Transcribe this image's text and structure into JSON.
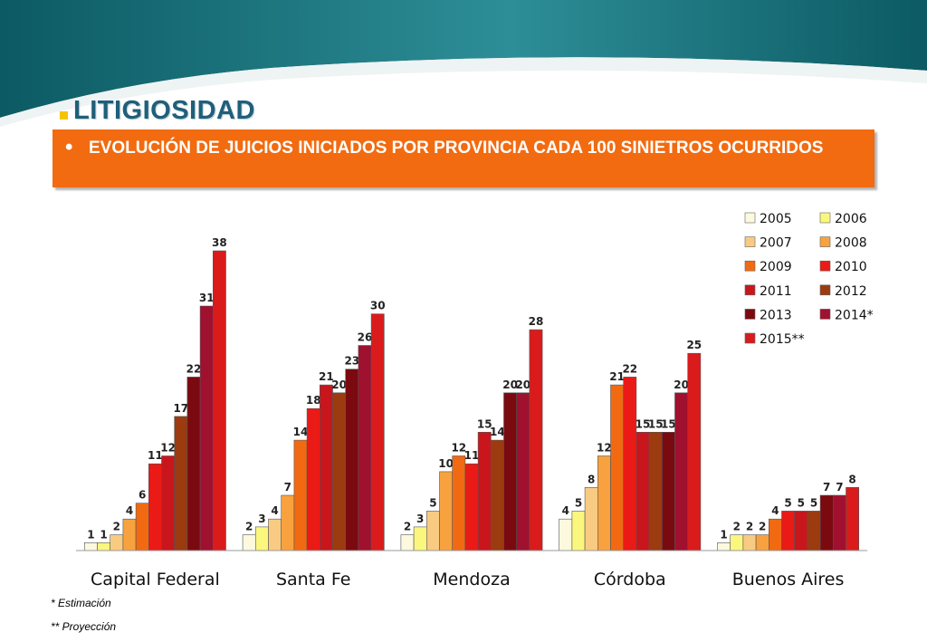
{
  "page": {
    "title": "LITIGIOSIDAD",
    "subtitle": "EVOLUCIÓN DE JUICIOS INICIADOS POR PROVINCIA CADA 100 SINIETROS OCURRIDOS",
    "subtitle_bullet": "•",
    "footnotes": [
      "* Estimación",
      "** Proyección"
    ]
  },
  "colors": {
    "header_dark": "#0c5a63",
    "header_light": "#2d8e97",
    "title": "#1f5f7a",
    "bullet": "#f5c400",
    "subtitle_bg": "#f26b10"
  },
  "chart_data": {
    "type": "bar",
    "title": "",
    "xlabel": "",
    "ylabel": "",
    "ylim": [
      0,
      38
    ],
    "grid": false,
    "legend_position": "top-right",
    "categories": [
      "Capital Federal",
      "Santa Fe",
      "Mendoza",
      "Córdoba",
      "Buenos Aires"
    ],
    "series": [
      {
        "name": "2005",
        "color": "#fdf9de",
        "values": [
          1,
          2,
          2,
          4,
          1
        ]
      },
      {
        "name": "2006",
        "color": "#fbf77e",
        "values": [
          1,
          3,
          3,
          5,
          2
        ]
      },
      {
        "name": "2007",
        "color": "#f9cb82",
        "values": [
          2,
          4,
          5,
          8,
          2
        ]
      },
      {
        "name": "2008",
        "color": "#f7a23f",
        "values": [
          4,
          7,
          10,
          12,
          2
        ]
      },
      {
        "name": "2009",
        "color": "#f16a12",
        "values": [
          6,
          14,
          12,
          21,
          4
        ]
      },
      {
        "name": "2010",
        "color": "#ea1a17",
        "values": [
          11,
          18,
          11,
          22,
          5
        ]
      },
      {
        "name": "2011",
        "color": "#c8161c",
        "values": [
          12,
          21,
          15,
          15,
          5
        ]
      },
      {
        "name": "2012",
        "color": "#9b3b0f",
        "values": [
          17,
          20,
          14,
          15,
          5
        ]
      },
      {
        "name": "2013",
        "color": "#7b0a10",
        "values": [
          22,
          23,
          20,
          15,
          7
        ]
      },
      {
        "name": "2014*",
        "color": "#a0102f",
        "values": [
          31,
          26,
          20,
          20,
          7
        ]
      },
      {
        "name": "2015**",
        "color": "#da1b1c",
        "values": [
          38,
          30,
          28,
          25,
          8
        ]
      }
    ]
  }
}
